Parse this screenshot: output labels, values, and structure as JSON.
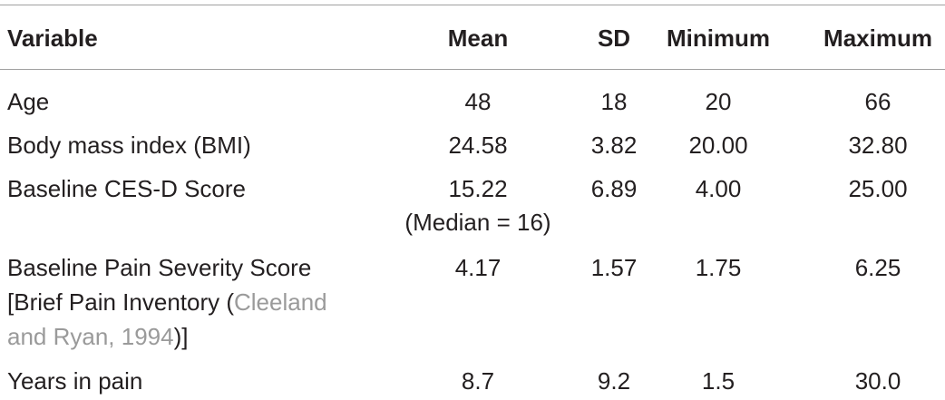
{
  "table": {
    "header": [
      "Variable",
      "Mean",
      "SD",
      "Minimum",
      "Maximum"
    ],
    "rows": [
      {
        "variable": "Age",
        "mean": "48",
        "sd": "18",
        "minimum": "20",
        "maximum": "66"
      },
      {
        "variable": "Body mass index (BMI)",
        "mean": "24.58",
        "sd": "3.82",
        "minimum": "20.00",
        "maximum": "32.80"
      },
      {
        "variable": "Baseline CES-D Score",
        "mean": "15.22",
        "mean_note": "(Median = 16)",
        "sd": "6.89",
        "minimum": "4.00",
        "maximum": "25.00"
      },
      {
        "variable_lines": [
          [
            {
              "text": "Baseline Pain Severity Score"
            }
          ],
          [
            {
              "text": "[Brief Pain Inventory ("
            },
            {
              "text": "Cleeland",
              "citation": true
            }
          ],
          [
            {
              "text": "and Ryan, 1994",
              "citation": true
            },
            {
              "text": ")]"
            }
          ]
        ],
        "mean": "4.17",
        "sd": "1.57",
        "minimum": "1.75",
        "maximum": "6.25"
      },
      {
        "variable": "Years in pain",
        "mean": "8.7",
        "sd": "9.2",
        "minimum": "1.5",
        "maximum": "30.0"
      }
    ]
  }
}
